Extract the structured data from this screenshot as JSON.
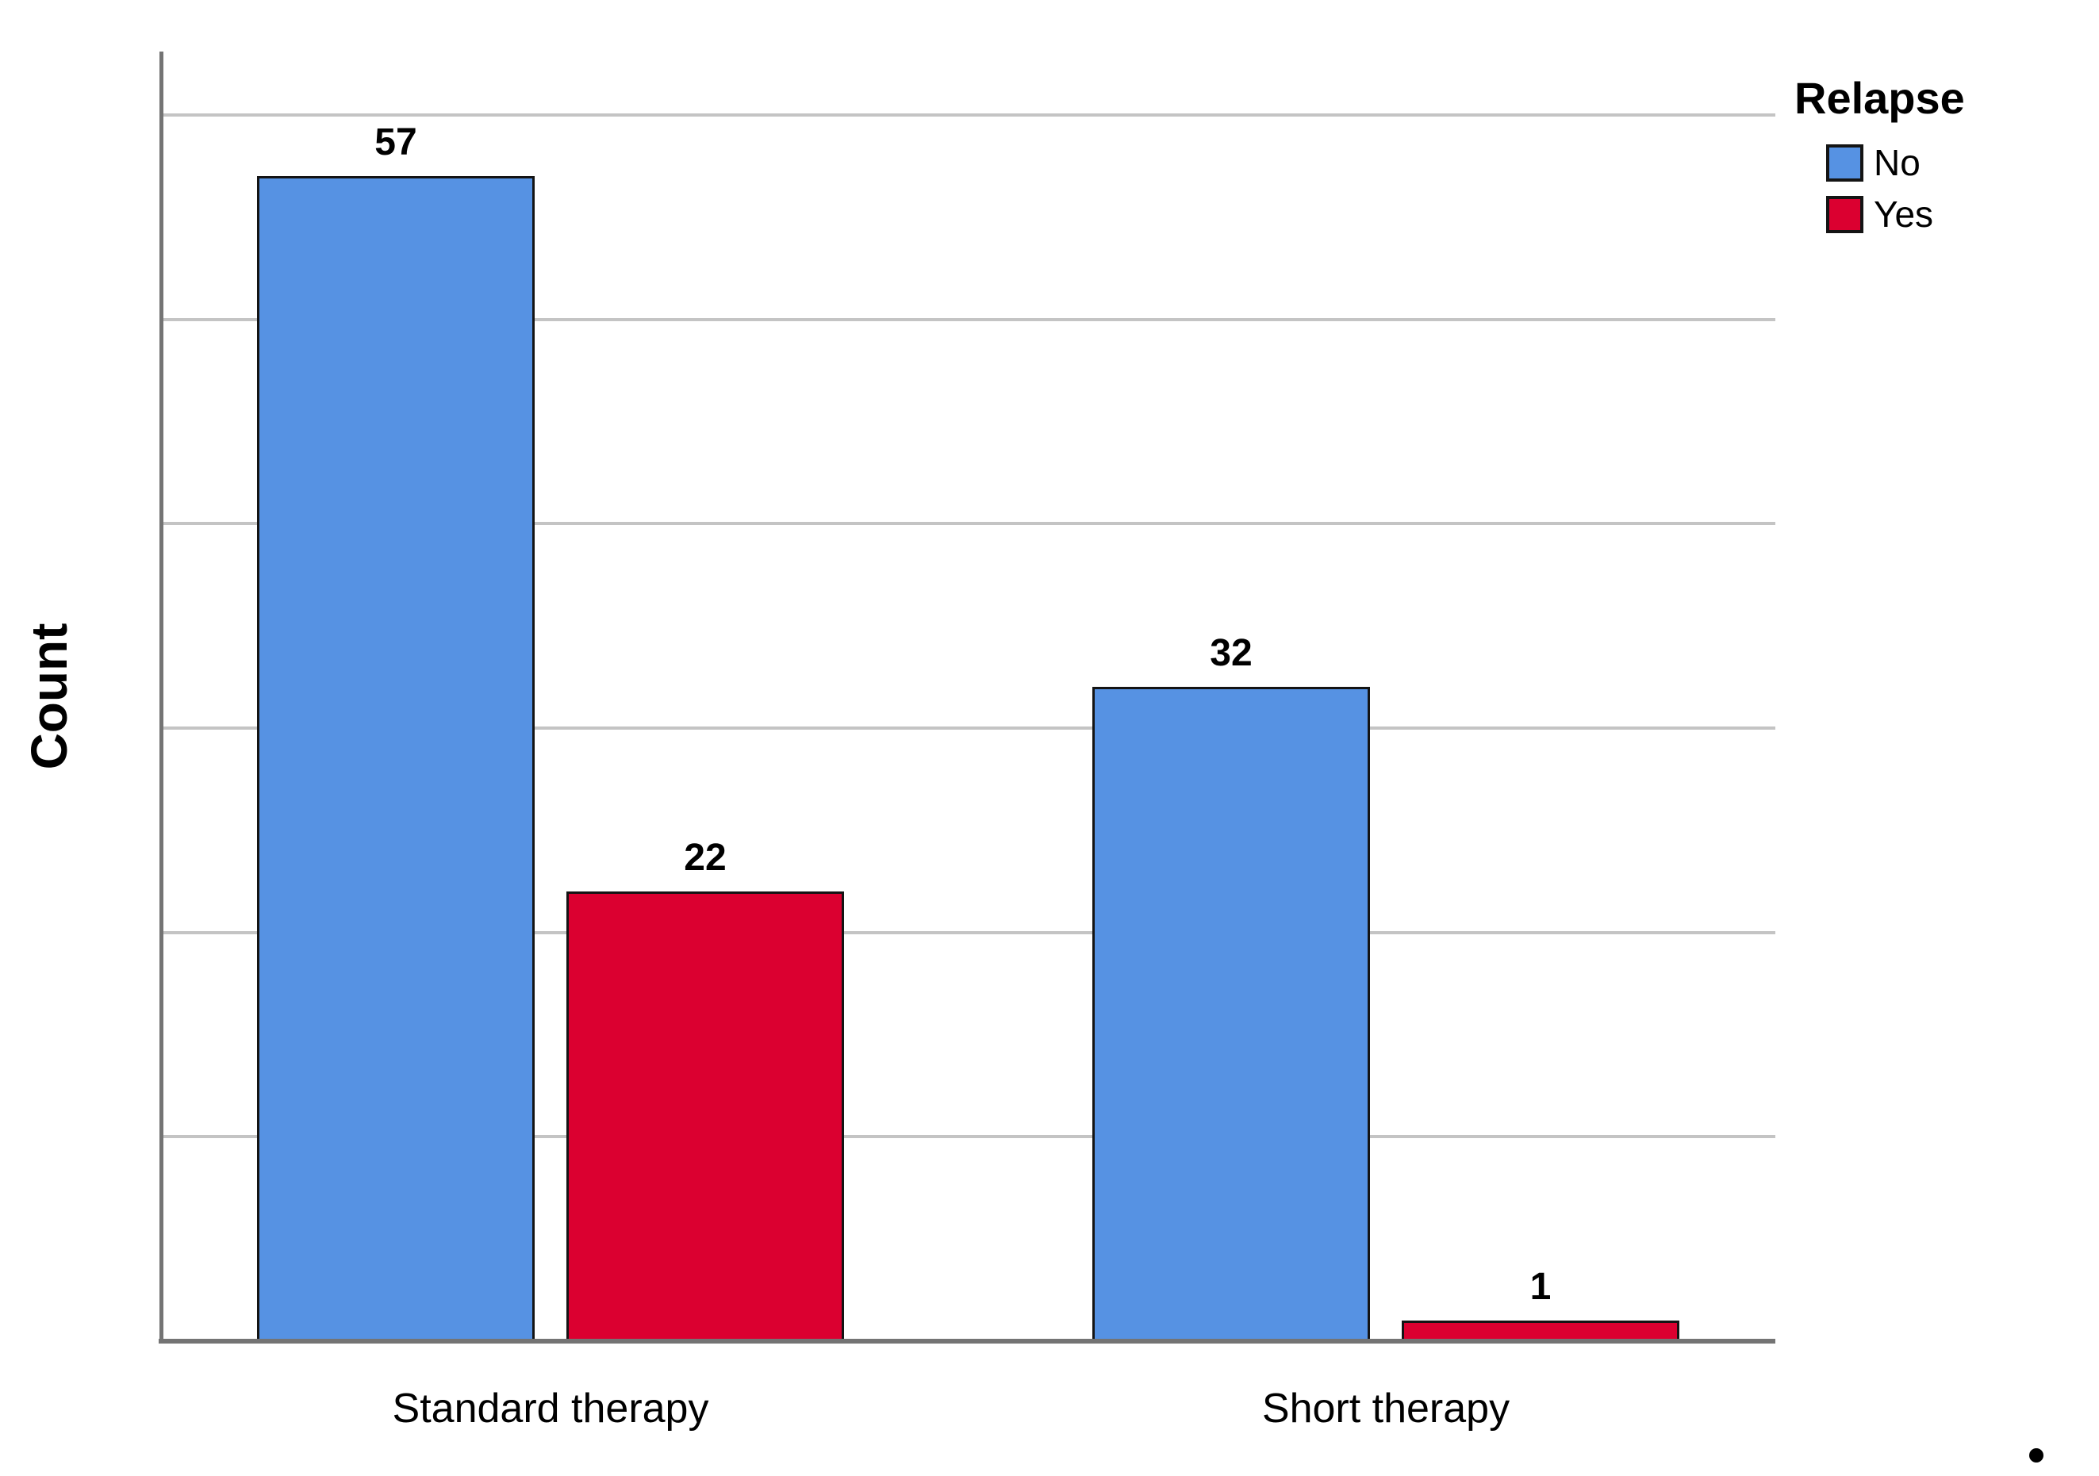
{
  "figure": {
    "background": "#ffffff"
  },
  "chart_data": {
    "type": "bar",
    "title": "",
    "xlabel": "",
    "ylabel": "Count",
    "categories": [
      "Standard therapy",
      "Short therapy"
    ],
    "series": [
      {
        "name": "No",
        "color": "#5692E3",
        "values": [
          57,
          32
        ]
      },
      {
        "name": "Yes",
        "color": "#DB0030",
        "values": [
          22,
          1
        ]
      }
    ],
    "value_labels_visible": true,
    "legend": {
      "title": "Relapse",
      "position": "top-right",
      "entries": [
        "No",
        "Yes"
      ]
    },
    "axis": {
      "y_min": 0,
      "y_max": 60,
      "grid_step": 10,
      "y_tick_labels_visible": false,
      "grid": true
    },
    "colors": {
      "axis_line": "#747474",
      "gridline": "#c4c4c4",
      "bar_border": "#141414",
      "text": "#000000"
    }
  },
  "artifacts": {
    "stray_dot": "•"
  }
}
